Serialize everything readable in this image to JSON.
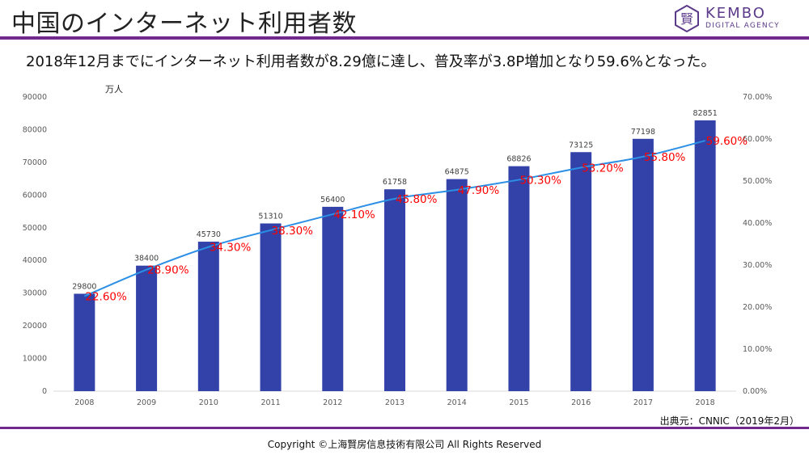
{
  "header": {
    "title": "中国のインターネット利用者数",
    "logo_name": "KEMBO",
    "logo_sub": "DIGITAL AGENCY",
    "logo_mark": "賢"
  },
  "subtitle": "2018年12月までにインターネット利用者数が8.29億に達し、普及率が3.8P増加となり59.6%となった。",
  "colors": {
    "accent": "#6f2a8c",
    "bar": "#3242a8",
    "line": "#2b8fe6",
    "rate_label": "#ff0000"
  },
  "footer": {
    "source": "出典元：CNNIC（2019年2月）",
    "copyright": "Copyright ©上海賢房信息技術有限公司 All Rights Reserved"
  },
  "chart_data": {
    "type": "bar",
    "title": "",
    "ylabel": "万人",
    "categories": [
      "2008",
      "2009",
      "2010",
      "2011",
      "2012",
      "2013",
      "2014",
      "2015",
      "2016",
      "2017",
      "2018"
    ],
    "series": [
      {
        "type": "bar",
        "values": [
          29800,
          38400,
          45730,
          51310,
          56400,
          61758,
          64875,
          68826,
          73125,
          77198,
          82851
        ]
      },
      {
        "type": "line",
        "axis": "right",
        "values": [
          22.6,
          28.9,
          34.3,
          38.3,
          42.1,
          45.8,
          47.9,
          50.3,
          53.2,
          55.8,
          59.6
        ],
        "labels": [
          "22.60%",
          "28.90%",
          "34.30%",
          "38.30%",
          "42.10%",
          "45.80%",
          "47.90%",
          "50.30%",
          "53.20%",
          "55.80%",
          "59.60%"
        ]
      }
    ],
    "ylim": [
      0,
      90000
    ],
    "y_ticks": [
      "0",
      "10000",
      "20000",
      "30000",
      "40000",
      "50000",
      "60000",
      "70000",
      "80000",
      "90000"
    ],
    "y2lim": [
      0,
      70
    ],
    "y2_ticks": [
      "0.00%",
      "10.00%",
      "20.00%",
      "30.00%",
      "40.00%",
      "50.00%",
      "60.00%",
      "70.00%"
    ],
    "grid": false,
    "legend": "none"
  }
}
